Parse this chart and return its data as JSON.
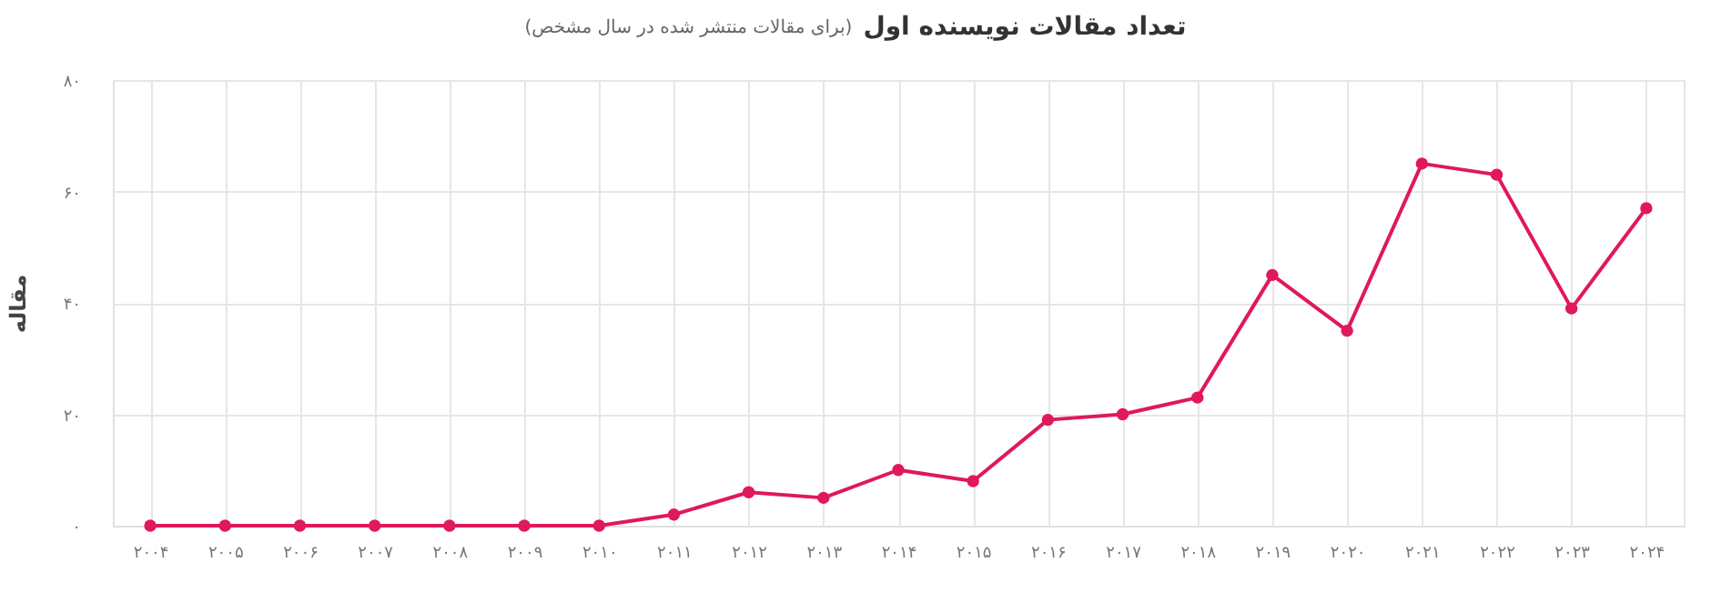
{
  "chart_data": {
    "type": "line",
    "title": "تعداد مقالات نویسنده اول",
    "subtitle": "(برای مقالات منتشر شده در سال مشخص)",
    "ylabel": "مقاله",
    "categories": [
      "۲۰۰۴",
      "۲۰۰۵",
      "۲۰۰۶",
      "۲۰۰۷",
      "۲۰۰۸",
      "۲۰۰۹",
      "۲۰۱۰",
      "۲۰۱۱",
      "۲۰۱۲",
      "۲۰۱۳",
      "۲۰۱۴",
      "۲۰۱۵",
      "۲۰۱۶",
      "۲۰۱۷",
      "۲۰۱۸",
      "۲۰۱۹",
      "۲۰۲۰",
      "۲۰۲۱",
      "۲۰۲۲",
      "۲۰۲۳",
      "۲۰۲۴"
    ],
    "series": [
      {
        "color": "#e0185c",
        "values": [
          0,
          0,
          0,
          0,
          0,
          0,
          0,
          2,
          6,
          5,
          10,
          8,
          19,
          20,
          23,
          45,
          35,
          65,
          63,
          39,
          57
        ]
      }
    ],
    "ylim": [
      0,
      80
    ],
    "yticks": [
      {
        "value": 0,
        "label": "۰"
      },
      {
        "value": 20,
        "label": "۲۰"
      },
      {
        "value": 40,
        "label": "۴۰"
      },
      {
        "value": 60,
        "label": "۶۰"
      },
      {
        "value": 80,
        "label": "۸۰"
      }
    ],
    "grid": true,
    "marker": "circle",
    "line_style": "solid"
  }
}
